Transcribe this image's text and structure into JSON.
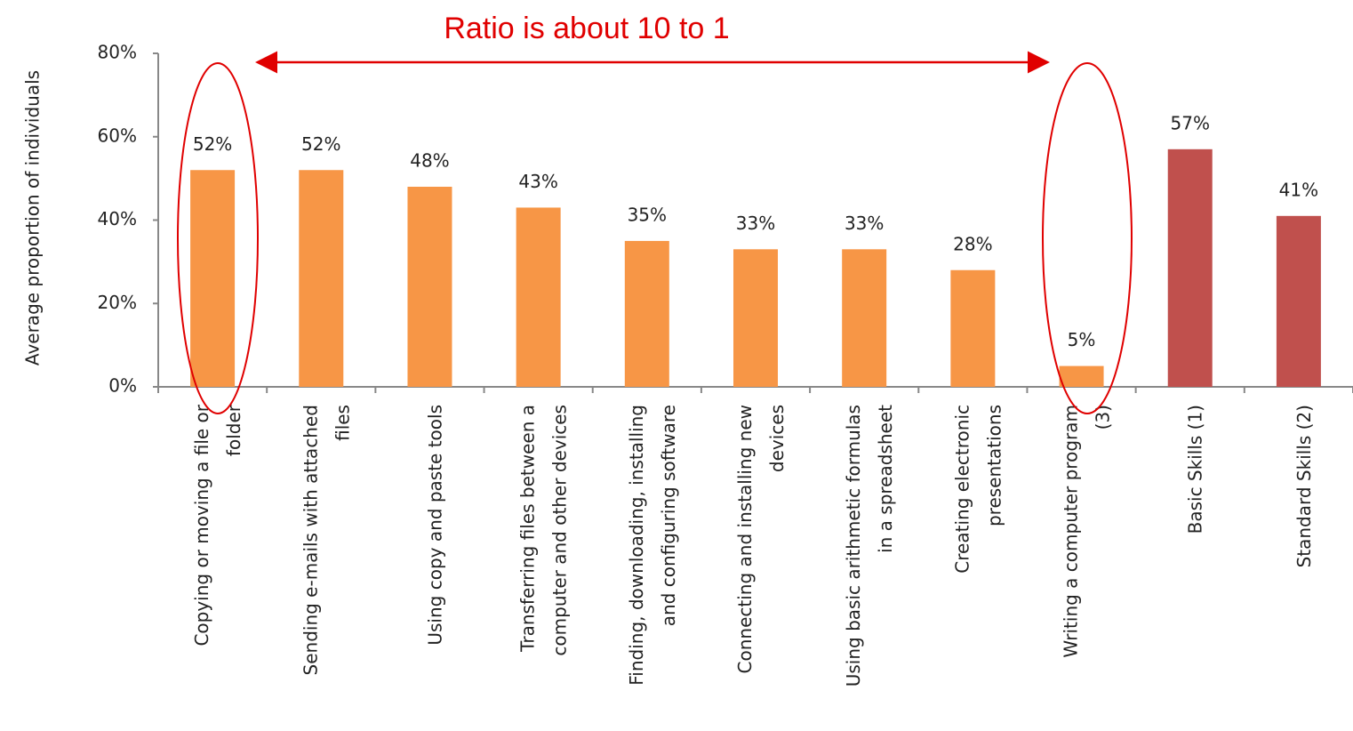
{
  "chart_data": {
    "type": "bar",
    "annotation": "Ratio is about 10 to 1",
    "y_axis_label": "Average proportion of individuals",
    "categories": [
      "Copying or moving a file or\nfolder",
      "Sending e-mails with attached\nfiles",
      "Using copy and paste tools",
      "Transferring files between a\ncomputer and other devices",
      "Finding, downloading, installing\nand configuring software",
      "Connecting and installing new\ndevices",
      "Using basic arithmetic formulas\nin a spreadsheet",
      "Creating electronic\npresentations",
      "Writing a computer program\n(3)",
      "Basic Skills (1)",
      "Standard Skills (2)"
    ],
    "values": [
      52,
      52,
      48,
      43,
      35,
      33,
      33,
      28,
      5,
      57,
      41
    ],
    "value_labels": [
      "52%",
      "52%",
      "48%",
      "43%",
      "35%",
      "33%",
      "33%",
      "28%",
      "5%",
      "57%",
      "41%"
    ],
    "colors": [
      "#f79646",
      "#f79646",
      "#f79646",
      "#f79646",
      "#f79646",
      "#f79646",
      "#f79646",
      "#f79646",
      "#f79646",
      "#c0504d",
      "#c0504d"
    ],
    "ylim": [
      0,
      80
    ],
    "yticks": [
      {
        "value": 0,
        "label": "0%"
      },
      {
        "value": 20,
        "label": "20%"
      },
      {
        "value": 40,
        "label": "40%"
      },
      {
        "value": 60,
        "label": "60%"
      },
      {
        "value": 80,
        "label": "80%"
      }
    ],
    "grid": false
  }
}
